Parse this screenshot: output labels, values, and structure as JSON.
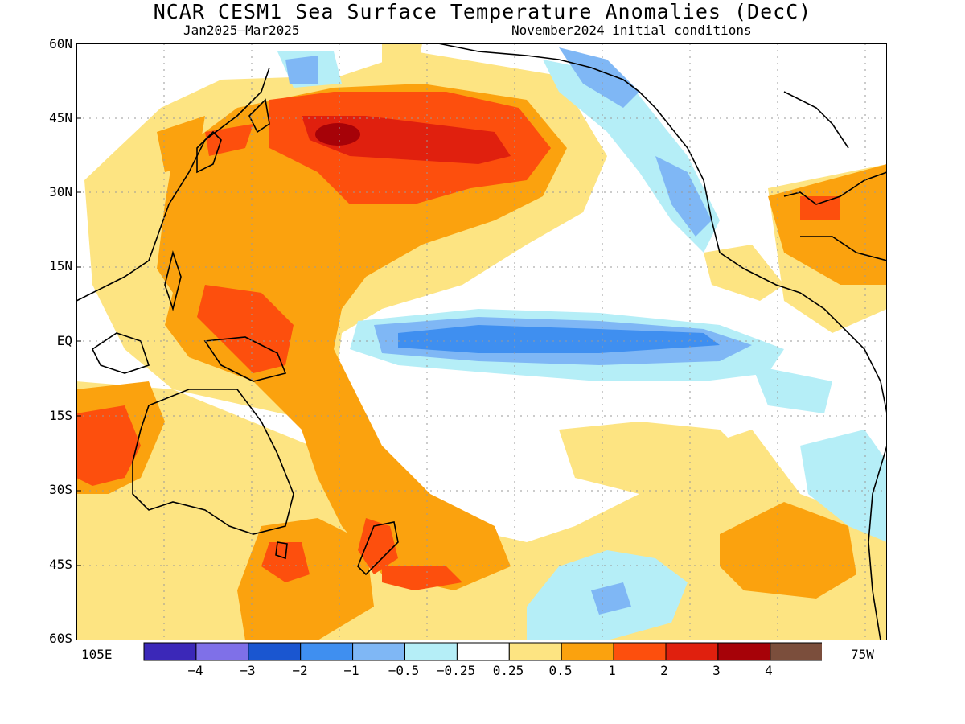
{
  "title": "NCAR_CESM1 Sea Surface Temperature Anomalies (DecC)",
  "subtitle_left": "Jan2025–Mar2025",
  "subtitle_right": "November2024 initial conditions",
  "lat_labels": [
    "60N",
    "45N",
    "30N",
    "15N",
    "EQ",
    "15S",
    "30S",
    "45S",
    "60S"
  ],
  "lon_labels": [
    "105E",
    "75W"
  ],
  "colorbar": {
    "colors": [
      "#3b28b8",
      "#7f70e8",
      "#1a56d0",
      "#3f8ff0",
      "#7fb7f5",
      "#b5eef7",
      "#ffffff",
      "#fde482",
      "#fba20e",
      "#fd4f0d",
      "#e0200e",
      "#a60208",
      "#7b4e3c"
    ],
    "labels": [
      "−4",
      "−3",
      "−2",
      "−1",
      "−0.5",
      "−0.25",
      "0.25",
      "0.5",
      "1",
      "2",
      "3",
      "4"
    ]
  },
  "map": {
    "lat_range": [
      -60,
      60
    ],
    "lon_range": [
      100,
      285
    ],
    "gridlines": "dotted"
  }
}
